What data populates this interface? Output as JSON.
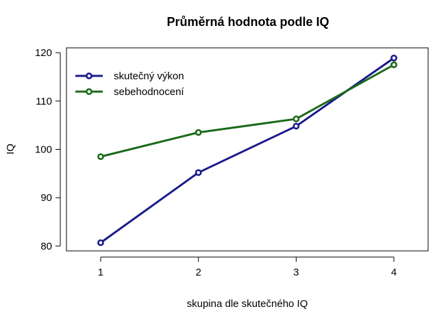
{
  "chart_data": {
    "type": "line",
    "title": "Průměrná hodnota podle IQ",
    "xlabel": "skupina dle skutečného IQ",
    "ylabel": "IQ",
    "x": [
      1,
      2,
      3,
      4
    ],
    "x_tick_labels": [
      "1",
      "2",
      "3",
      "4"
    ],
    "y_ticks": [
      80,
      90,
      100,
      110,
      120
    ],
    "y_tick_labels": [
      "80",
      "90",
      "100",
      "110",
      "120"
    ],
    "xlim": [
      0.65,
      4.35
    ],
    "ylim": [
      79,
      121
    ],
    "grid": false,
    "legend_position": "top-left",
    "series": [
      {
        "name": "skutečný výkon",
        "values": [
          80.7,
          95.2,
          104.8,
          118.9
        ],
        "color": "#1a1a8c"
      },
      {
        "name": "sebehodnocení",
        "values": [
          98.5,
          103.5,
          106.3,
          117.5
        ],
        "color": "#1a6b1a"
      }
    ]
  }
}
